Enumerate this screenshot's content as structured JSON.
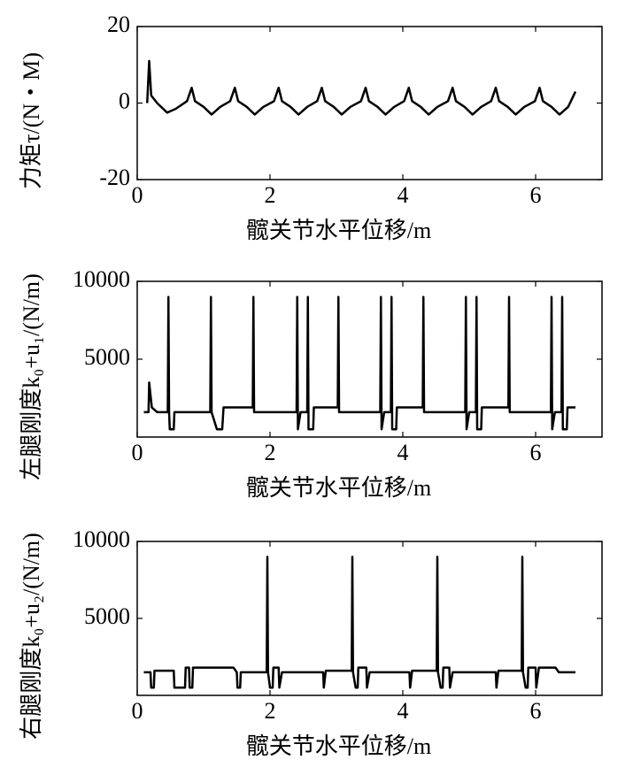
{
  "chart_data": [
    {
      "type": "line",
      "ylabel": "力矩τ/(N・M)",
      "xlabel": "髋关节水平位移/m",
      "color": "#000000",
      "xlim": [
        0,
        7
      ],
      "xticks": [
        0,
        2,
        4,
        6
      ],
      "ylim": [
        -20,
        20
      ],
      "yticks": [
        -20,
        0,
        20
      ],
      "x": [
        0.15,
        0.18,
        0.21,
        0.3,
        0.45,
        0.58,
        0.75,
        0.82,
        0.87,
        1.0,
        1.12,
        1.25,
        1.4,
        1.47,
        1.52,
        1.65,
        1.77,
        1.9,
        2.06,
        2.13,
        2.18,
        2.31,
        2.43,
        2.56,
        2.71,
        2.78,
        2.83,
        2.96,
        3.08,
        3.21,
        3.37,
        3.44,
        3.49,
        3.62,
        3.74,
        3.87,
        4.02,
        4.09,
        4.14,
        4.27,
        4.39,
        4.52,
        4.68,
        4.75,
        4.8,
        4.93,
        5.05,
        5.18,
        5.33,
        5.4,
        5.45,
        5.58,
        5.7,
        5.83,
        5.99,
        6.06,
        6.11,
        6.24,
        6.36,
        6.49,
        6.6
      ],
      "values": [
        0,
        11,
        2,
        0,
        -2.5,
        -1.5,
        0.5,
        4,
        0.5,
        -1,
        -3,
        -1,
        0.5,
        4,
        0.5,
        -1,
        -3,
        -1,
        0.5,
        4,
        0.5,
        -1,
        -3,
        -1,
        0.5,
        4,
        0.5,
        -1,
        -3,
        -1,
        0.5,
        4,
        0.5,
        -1,
        -3,
        -1,
        0.5,
        4,
        0.5,
        -1,
        -3,
        -1,
        0.5,
        4,
        0.5,
        -1,
        -3,
        -1,
        0.5,
        4,
        0.5,
        -1,
        -3,
        -1,
        0.5,
        4,
        0.5,
        -1,
        -3,
        -1,
        3
      ]
    },
    {
      "type": "line",
      "ylabel": "左腿刚度k₀+u₁/(N/m)",
      "xlabel": "髋关节水平位移/m",
      "color": "#000000",
      "xlim": [
        0,
        7
      ],
      "xticks": [
        0,
        2,
        4,
        6
      ],
      "ylim": [
        0,
        10000
      ],
      "yticks": [
        5000,
        10000
      ],
      "x": [
        0.1,
        0.17,
        0.18,
        0.22,
        0.3,
        0.46,
        0.47,
        0.48,
        0.49,
        0.55,
        0.56,
        1.1,
        1.11,
        1.12,
        1.2,
        1.28,
        1.3,
        1.74,
        1.75,
        1.76,
        2.4,
        2.41,
        2.42,
        2.46,
        2.56,
        2.57,
        2.58,
        2.65,
        2.66,
        3.02,
        3.03,
        3.04,
        3.66,
        3.67,
        3.68,
        3.72,
        3.82,
        3.83,
        3.84,
        3.9,
        3.91,
        4.3,
        4.31,
        4.32,
        4.94,
        4.95,
        4.96,
        5.0,
        5.1,
        5.11,
        5.12,
        5.18,
        5.19,
        5.59,
        5.6,
        5.61,
        6.23,
        6.24,
        6.25,
        6.29,
        6.39,
        6.4,
        6.41,
        6.47,
        6.48,
        6.6
      ],
      "values": [
        1600,
        1600,
        3500,
        1900,
        1600,
        1600,
        9000,
        1600,
        500,
        500,
        1600,
        1600,
        9000,
        1600,
        500,
        500,
        1900,
        1900,
        9000,
        1600,
        1600,
        9000,
        500,
        1600,
        1600,
        9000,
        500,
        500,
        1900,
        1900,
        9000,
        1600,
        1600,
        9000,
        500,
        1600,
        1600,
        9000,
        500,
        500,
        1900,
        1900,
        9000,
        1600,
        1600,
        9000,
        500,
        1600,
        1600,
        9000,
        500,
        500,
        1900,
        1900,
        9000,
        1600,
        1600,
        9000,
        500,
        1600,
        1600,
        9000,
        500,
        500,
        1900,
        1900
      ]
    },
    {
      "type": "line",
      "ylabel": "右腿刚度k₀+u₂/(N/m)",
      "xlabel": "髋关节水平位移/m",
      "color": "#000000",
      "xlim": [
        0,
        7
      ],
      "xticks": [
        0,
        2,
        4,
        6
      ],
      "ylim": [
        0,
        10000
      ],
      "yticks": [
        5000,
        10000
      ],
      "x": [
        0.1,
        0.2,
        0.21,
        0.25,
        0.26,
        0.55,
        0.56,
        0.72,
        0.73,
        0.78,
        0.79,
        0.83,
        0.84,
        1.45,
        1.5,
        1.51,
        1.55,
        1.56,
        1.95,
        1.96,
        1.97,
        2.0,
        2.04,
        2.05,
        2.13,
        2.14,
        2.18,
        2.8,
        2.81,
        2.84,
        3.23,
        3.24,
        3.25,
        3.29,
        3.32,
        3.33,
        3.45,
        3.46,
        3.5,
        4.1,
        4.11,
        4.14,
        4.51,
        4.52,
        4.53,
        4.57,
        4.6,
        4.61,
        4.7,
        4.71,
        4.75,
        5.4,
        5.41,
        5.44,
        5.79,
        5.8,
        5.81,
        5.85,
        5.88,
        5.89,
        6.0,
        6.01,
        6.05,
        6.3,
        6.35,
        6.6
      ],
      "values": [
        1500,
        1500,
        500,
        500,
        1600,
        1600,
        500,
        500,
        1800,
        1800,
        500,
        500,
        1800,
        1800,
        1500,
        500,
        500,
        1500,
        1500,
        9000,
        1500,
        500,
        500,
        1800,
        1800,
        500,
        1500,
        1500,
        500,
        1600,
        1600,
        9000,
        1500,
        500,
        500,
        1800,
        1800,
        500,
        1500,
        1500,
        500,
        1600,
        1600,
        9000,
        1500,
        500,
        500,
        1800,
        1800,
        500,
        1500,
        1500,
        500,
        1600,
        1600,
        9000,
        1500,
        500,
        500,
        1800,
        1800,
        500,
        1800,
        1800,
        1500,
        1500
      ]
    }
  ]
}
